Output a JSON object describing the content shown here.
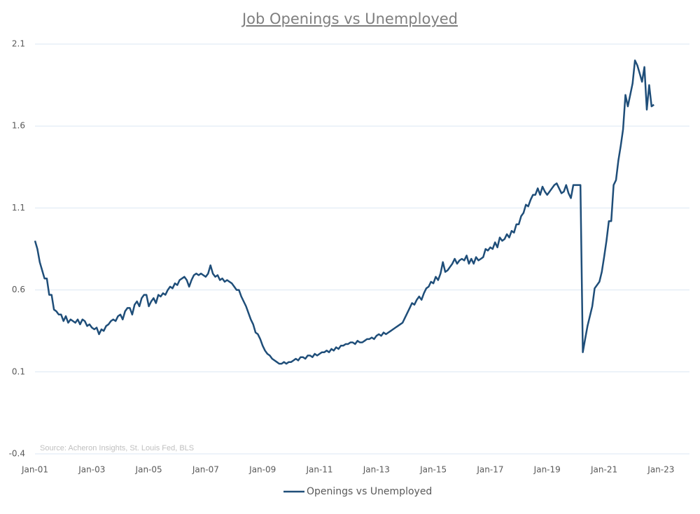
{
  "chart_data": {
    "type": "line",
    "title": "Job Openings vs Unemployed",
    "note": "Source: Acheron Insights, St. Louis Fed, BLS",
    "x": [
      "2001-01",
      "2001-02",
      "2001-03",
      "2001-04",
      "2001-05",
      "2001-06",
      "2001-07",
      "2001-08",
      "2001-09",
      "2001-10",
      "2001-11",
      "2001-12",
      "2002-01",
      "2002-02",
      "2002-03",
      "2002-04",
      "2002-05",
      "2002-06",
      "2002-07",
      "2002-08",
      "2002-09",
      "2002-10",
      "2002-11",
      "2002-12",
      "2003-01",
      "2003-02",
      "2003-03",
      "2003-04",
      "2003-05",
      "2003-06",
      "2003-07",
      "2003-08",
      "2003-09",
      "2003-10",
      "2003-11",
      "2003-12",
      "2004-01",
      "2004-02",
      "2004-03",
      "2004-04",
      "2004-05",
      "2004-06",
      "2004-07",
      "2004-08",
      "2004-09",
      "2004-10",
      "2004-11",
      "2004-12",
      "2005-01",
      "2005-02",
      "2005-03",
      "2005-04",
      "2005-05",
      "2005-06",
      "2005-07",
      "2005-08",
      "2005-09",
      "2005-10",
      "2005-11",
      "2005-12",
      "2006-01",
      "2006-02",
      "2006-03",
      "2006-04",
      "2006-05",
      "2006-06",
      "2006-07",
      "2006-08",
      "2006-09",
      "2006-10",
      "2006-11",
      "2006-12",
      "2007-01",
      "2007-02",
      "2007-03",
      "2007-04",
      "2007-05",
      "2007-06",
      "2007-07",
      "2007-08",
      "2007-09",
      "2007-10",
      "2007-11",
      "2007-12",
      "2008-01",
      "2008-02",
      "2008-03",
      "2008-04",
      "2008-05",
      "2008-06",
      "2008-07",
      "2008-08",
      "2008-09",
      "2008-10",
      "2008-11",
      "2008-12",
      "2009-01",
      "2009-02",
      "2009-03",
      "2009-04",
      "2009-05",
      "2009-06",
      "2009-07",
      "2009-08",
      "2009-09",
      "2009-10",
      "2009-11",
      "2009-12",
      "2010-01",
      "2010-02",
      "2010-03",
      "2010-04",
      "2010-05",
      "2010-06",
      "2010-07",
      "2010-08",
      "2010-09",
      "2010-10",
      "2010-11",
      "2010-12",
      "2011-01",
      "2011-02",
      "2011-03",
      "2011-04",
      "2011-05",
      "2011-06",
      "2011-07",
      "2011-08",
      "2011-09",
      "2011-10",
      "2011-11",
      "2011-12",
      "2012-01",
      "2012-02",
      "2012-03",
      "2012-04",
      "2012-05",
      "2012-06",
      "2012-07",
      "2012-08",
      "2012-09",
      "2012-10",
      "2012-11",
      "2012-12",
      "2013-01",
      "2013-02",
      "2013-03",
      "2013-04",
      "2013-05",
      "2013-06",
      "2013-07",
      "2013-08",
      "2013-09",
      "2013-10",
      "2013-11",
      "2013-12",
      "2014-01",
      "2014-02",
      "2014-03",
      "2014-04",
      "2014-05",
      "2014-06",
      "2014-07",
      "2014-08",
      "2014-09",
      "2014-10",
      "2014-11",
      "2014-12",
      "2015-01",
      "2015-02",
      "2015-03",
      "2015-04",
      "2015-05",
      "2015-06",
      "2015-07",
      "2015-08",
      "2015-09",
      "2015-10",
      "2015-11",
      "2015-12",
      "2016-01",
      "2016-02",
      "2016-03",
      "2016-04",
      "2016-05",
      "2016-06",
      "2016-07",
      "2016-08",
      "2016-09",
      "2016-10",
      "2016-11",
      "2016-12",
      "2017-01",
      "2017-02",
      "2017-03",
      "2017-04",
      "2017-05",
      "2017-06",
      "2017-07",
      "2017-08",
      "2017-09",
      "2017-10",
      "2017-11",
      "2017-12",
      "2018-01",
      "2018-02",
      "2018-03",
      "2018-04",
      "2018-05",
      "2018-06",
      "2018-07",
      "2018-08",
      "2018-09",
      "2018-10",
      "2018-11",
      "2018-12",
      "2019-01",
      "2019-02",
      "2019-03",
      "2019-04",
      "2019-05",
      "2019-06",
      "2019-07",
      "2019-08",
      "2019-09",
      "2019-10",
      "2019-11",
      "2019-12",
      "2020-01",
      "2020-02",
      "2020-03",
      "2020-04",
      "2020-05",
      "2020-06",
      "2020-07",
      "2020-08",
      "2020-09",
      "2020-10",
      "2020-11",
      "2020-12",
      "2021-01",
      "2021-02",
      "2021-03",
      "2021-04",
      "2021-05",
      "2021-06",
      "2021-07",
      "2021-08",
      "2021-09",
      "2021-10",
      "2021-11",
      "2021-12",
      "2022-01",
      "2022-02",
      "2022-03",
      "2022-04",
      "2022-05",
      "2022-06",
      "2022-07",
      "2022-08",
      "2022-09",
      "2022-10"
    ],
    "series": [
      {
        "name": "Openings vs Unemployed",
        "color": "#1f4e79",
        "values": [
          0.9,
          0.85,
          0.77,
          0.72,
          0.67,
          0.67,
          0.57,
          0.57,
          0.48,
          0.47,
          0.45,
          0.45,
          0.41,
          0.44,
          0.4,
          0.42,
          0.41,
          0.4,
          0.42,
          0.39,
          0.42,
          0.41,
          0.38,
          0.39,
          0.37,
          0.36,
          0.37,
          0.33,
          0.36,
          0.35,
          0.38,
          0.39,
          0.41,
          0.42,
          0.41,
          0.44,
          0.45,
          0.42,
          0.47,
          0.49,
          0.49,
          0.45,
          0.51,
          0.53,
          0.5,
          0.55,
          0.57,
          0.57,
          0.5,
          0.53,
          0.55,
          0.52,
          0.57,
          0.56,
          0.58,
          0.57,
          0.6,
          0.62,
          0.61,
          0.64,
          0.63,
          0.66,
          0.67,
          0.68,
          0.66,
          0.62,
          0.66,
          0.69,
          0.7,
          0.69,
          0.7,
          0.69,
          0.68,
          0.7,
          0.75,
          0.7,
          0.68,
          0.69,
          0.66,
          0.67,
          0.65,
          0.66,
          0.65,
          0.64,
          0.62,
          0.6,
          0.6,
          0.56,
          0.53,
          0.5,
          0.46,
          0.42,
          0.39,
          0.34,
          0.33,
          0.3,
          0.26,
          0.23,
          0.21,
          0.2,
          0.18,
          0.17,
          0.16,
          0.15,
          0.15,
          0.16,
          0.15,
          0.16,
          0.16,
          0.17,
          0.18,
          0.17,
          0.19,
          0.19,
          0.18,
          0.2,
          0.2,
          0.19,
          0.21,
          0.2,
          0.21,
          0.22,
          0.22,
          0.23,
          0.22,
          0.24,
          0.23,
          0.25,
          0.24,
          0.26,
          0.26,
          0.27,
          0.27,
          0.28,
          0.28,
          0.27,
          0.29,
          0.28,
          0.28,
          0.29,
          0.3,
          0.3,
          0.31,
          0.3,
          0.32,
          0.33,
          0.32,
          0.34,
          0.33,
          0.34,
          0.35,
          0.36,
          0.37,
          0.38,
          0.39,
          0.4,
          0.43,
          0.46,
          0.49,
          0.52,
          0.51,
          0.54,
          0.56,
          0.54,
          0.58,
          0.61,
          0.62,
          0.65,
          0.64,
          0.68,
          0.66,
          0.7,
          0.77,
          0.71,
          0.72,
          0.74,
          0.76,
          0.79,
          0.76,
          0.78,
          0.79,
          0.78,
          0.81,
          0.76,
          0.79,
          0.76,
          0.8,
          0.78,
          0.79,
          0.8,
          0.85,
          0.84,
          0.86,
          0.85,
          0.89,
          0.86,
          0.92,
          0.9,
          0.91,
          0.94,
          0.92,
          0.96,
          0.95,
          1.0,
          1.0,
          1.05,
          1.07,
          1.12,
          1.11,
          1.15,
          1.18,
          1.18,
          1.22,
          1.18,
          1.23,
          1.2,
          1.18,
          1.2,
          1.22,
          1.24,
          1.25,
          1.22,
          1.19,
          1.2,
          1.24,
          1.19,
          1.16,
          1.24,
          1.24,
          1.24,
          1.24,
          0.22,
          0.3,
          0.38,
          0.44,
          0.5,
          0.61,
          0.63,
          0.65,
          0.71,
          0.8,
          0.9,
          1.02,
          1.02,
          1.24,
          1.27,
          1.39,
          1.48,
          1.58,
          1.79,
          1.72,
          1.79,
          1.86,
          2.0,
          1.97,
          1.92,
          1.87,
          1.96,
          1.7,
          1.85,
          1.72,
          1.73
        ]
      }
    ],
    "xlim": [
      "2001-01",
      "2024-01"
    ],
    "xticks": [
      {
        "value": "2001-01",
        "label": "Jan-01"
      },
      {
        "value": "2003-01",
        "label": "Jan-03"
      },
      {
        "value": "2005-01",
        "label": "Jan-05"
      },
      {
        "value": "2007-01",
        "label": "Jan-07"
      },
      {
        "value": "2009-01",
        "label": "Jan-09"
      },
      {
        "value": "2011-01",
        "label": "Jan-11"
      },
      {
        "value": "2013-01",
        "label": "Jan-13"
      },
      {
        "value": "2015-01",
        "label": "Jan-15"
      },
      {
        "value": "2017-01",
        "label": "Jan-17"
      },
      {
        "value": "2019-01",
        "label": "Jan-19"
      },
      {
        "value": "2021-01",
        "label": "Jan-21"
      },
      {
        "value": "2023-01",
        "label": "Jan-23"
      }
    ],
    "ylim": [
      -0.4,
      2.1
    ],
    "yticks": [
      -0.4,
      0.1,
      0.6,
      1.1,
      1.6,
      2.1
    ],
    "grid": true,
    "legend": "bottom"
  }
}
